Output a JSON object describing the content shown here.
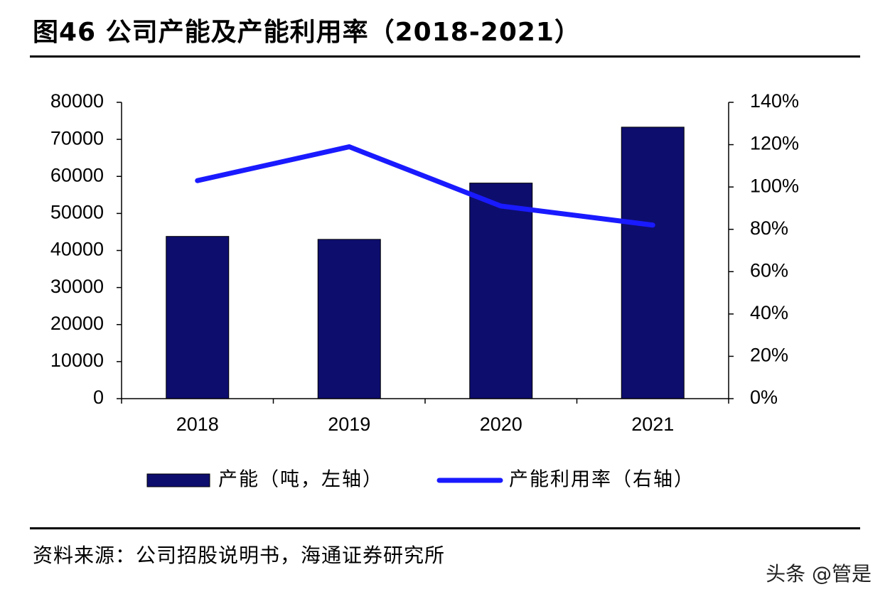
{
  "title": "图46 公司产能及产能利用率（2018-2021）",
  "source": "资料来源：公司招股说明书，海通证券研究所",
  "watermark": "头条 @管是",
  "colors": {
    "bar": "#0d0d6e",
    "line": "#1a1aff",
    "axis": "#000000"
  },
  "chart_data": {
    "type": "bar+line",
    "categories": [
      "2018",
      "2019",
      "2020",
      "2021"
    ],
    "series": [
      {
        "name": "产能（吨，左轴）",
        "type": "bar",
        "axis": "left",
        "values": [
          43800,
          43000,
          58200,
          73300
        ]
      },
      {
        "name": "产能利用率（右轴）",
        "type": "line",
        "axis": "right",
        "values": [
          103,
          119,
          91,
          82
        ]
      }
    ],
    "y_left": {
      "min": 0,
      "max": 80000,
      "ticks": [
        0,
        10000,
        20000,
        30000,
        40000,
        50000,
        60000,
        70000,
        80000
      ],
      "tick_labels": [
        "0",
        "10000",
        "20000",
        "30000",
        "40000",
        "50000",
        "60000",
        "70000",
        "80000"
      ]
    },
    "y_right": {
      "min": 0,
      "max": 140,
      "ticks": [
        0,
        20,
        40,
        60,
        80,
        100,
        120,
        140
      ],
      "tick_labels": [
        "0%",
        "20%",
        "40%",
        "60%",
        "80%",
        "100%",
        "120%",
        "140%"
      ]
    },
    "legend": [
      {
        "label": "产能（吨，左轴）",
        "kind": "bar"
      },
      {
        "label": "产能利用率（右轴）",
        "kind": "line"
      }
    ],
    "legend_position": "bottom",
    "grid": false
  }
}
